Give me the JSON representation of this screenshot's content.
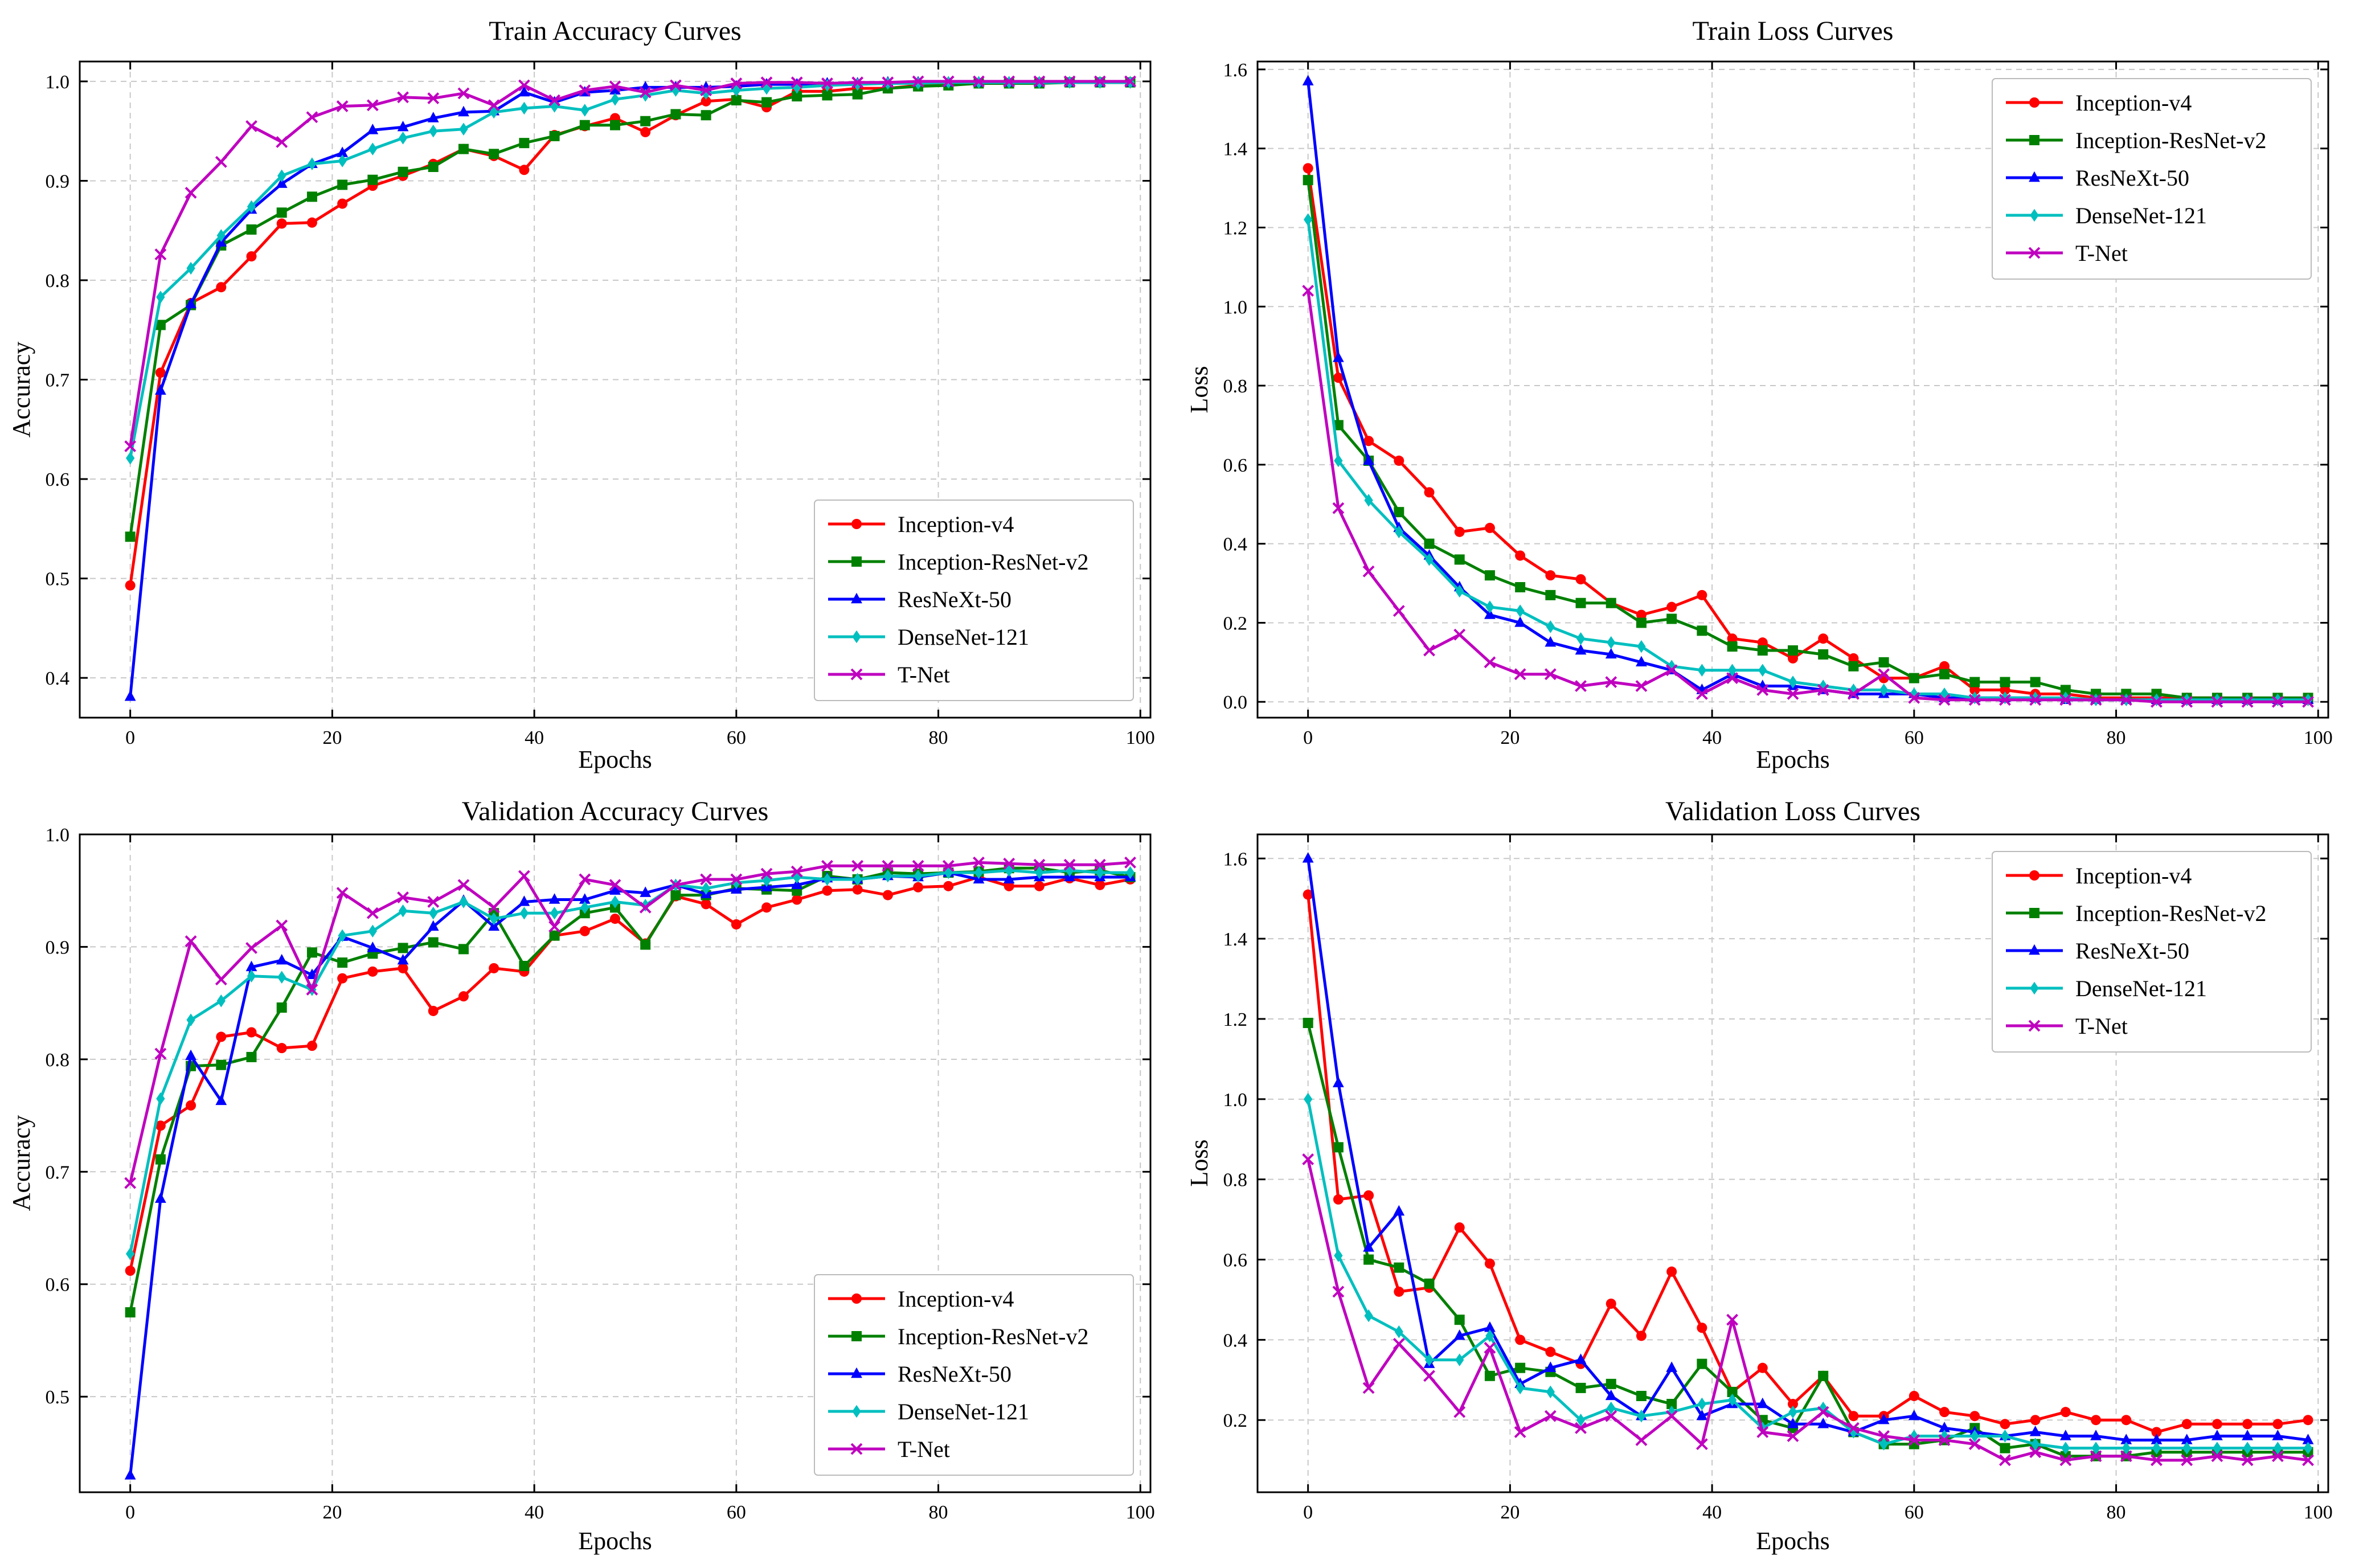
{
  "figure": {
    "series_styles": [
      {
        "name": "Inception-v4",
        "color": "#ff0000",
        "marker": "circle"
      },
      {
        "name": "Inception-ResNet-v2",
        "color": "#008000",
        "marker": "square"
      },
      {
        "name": "ResNeXt-50",
        "color": "#0000ff",
        "marker": "triangle"
      },
      {
        "name": "DenseNet-121",
        "color": "#00bfbf",
        "marker": "diamond"
      },
      {
        "name": "T-Net",
        "color": "#bf00bf",
        "marker": "x"
      }
    ]
  },
  "chart_data": [
    {
      "type": "line",
      "title": "Train Accuracy Curves",
      "xlabel": "Epochs",
      "ylabel": "Accuracy",
      "xlim": [
        -5,
        101
      ],
      "ylim": [
        0.36,
        1.02
      ],
      "xticks": [
        0,
        20,
        40,
        60,
        80,
        100
      ],
      "yticks": [
        0.4,
        0.5,
        0.6,
        0.7,
        0.8,
        0.9,
        1.0
      ],
      "xtick_labels": [
        "0",
        "20",
        "40",
        "60",
        "80",
        "100"
      ],
      "ytick_labels": [
        "0.4",
        "0.5",
        "0.6",
        "0.7",
        "0.8",
        "0.9",
        "1.0"
      ],
      "legend": "lower-right",
      "grid": true,
      "x": [
        0,
        3,
        6,
        9,
        12,
        15,
        18,
        21,
        24,
        27,
        30,
        33,
        36,
        39,
        42,
        45,
        48,
        51,
        54,
        57,
        60,
        63,
        66,
        69,
        72,
        75,
        78,
        81,
        84,
        87,
        90,
        93,
        96,
        99
      ],
      "series": [
        {
          "name": "Inception-v4",
          "values": [
            0.493,
            0.707,
            0.777,
            0.793,
            0.824,
            0.857,
            0.858,
            0.877,
            0.895,
            0.905,
            0.917,
            0.932,
            0.925,
            0.911,
            0.946,
            0.955,
            0.963,
            0.949,
            0.966,
            0.98,
            0.982,
            0.974,
            0.99,
            0.99,
            0.993,
            0.993,
            0.996,
            0.997,
            0.998,
            0.998,
            0.999,
            0.999,
            0.999,
            0.999
          ]
        },
        {
          "name": "Inception-ResNet-v2",
          "values": [
            0.542,
            0.755,
            0.775,
            0.835,
            0.851,
            0.868,
            0.884,
            0.896,
            0.901,
            0.909,
            0.914,
            0.932,
            0.927,
            0.938,
            0.945,
            0.956,
            0.956,
            0.96,
            0.967,
            0.966,
            0.981,
            0.979,
            0.985,
            0.986,
            0.987,
            0.993,
            0.995,
            0.996,
            0.998,
            0.998,
            0.998,
            0.999,
            0.999,
            0.999
          ]
        },
        {
          "name": "ResNeXt-50",
          "values": [
            0.381,
            0.689,
            0.776,
            0.838,
            0.871,
            0.897,
            0.917,
            0.928,
            0.951,
            0.954,
            0.963,
            0.969,
            0.97,
            0.989,
            0.979,
            0.989,
            0.991,
            0.994,
            0.994,
            0.994,
            0.995,
            0.997,
            0.997,
            0.998,
            0.998,
            0.999,
            0.999,
            0.999,
            0.999,
            0.999,
            0.999,
            0.999,
            0.999,
            0.999
          ]
        },
        {
          "name": "DenseNet-121",
          "values": [
            0.621,
            0.783,
            0.812,
            0.845,
            0.874,
            0.905,
            0.917,
            0.92,
            0.932,
            0.943,
            0.95,
            0.952,
            0.969,
            0.973,
            0.975,
            0.971,
            0.982,
            0.986,
            0.991,
            0.988,
            0.991,
            0.993,
            0.994,
            0.996,
            0.997,
            0.998,
            0.998,
            0.999,
            0.999,
            0.999,
            0.999,
            0.999,
            0.999,
            0.999
          ]
        },
        {
          "name": "T-Net",
          "values": [
            0.633,
            0.826,
            0.888,
            0.919,
            0.955,
            0.939,
            0.964,
            0.975,
            0.976,
            0.984,
            0.983,
            0.988,
            0.976,
            0.996,
            0.981,
            0.991,
            0.995,
            0.989,
            0.996,
            0.991,
            0.998,
            0.999,
            0.999,
            0.998,
            0.999,
            0.999,
            1.0,
            1.0,
            1.0,
            1.0,
            1.0,
            1.0,
            1.0,
            1.0
          ]
        }
      ]
    },
    {
      "type": "line",
      "title": "Train Loss Curves",
      "xlabel": "Epochs",
      "ylabel": "Loss",
      "xlim": [
        -5,
        101
      ],
      "ylim": [
        -0.04,
        1.62
      ],
      "xticks": [
        0,
        20,
        40,
        60,
        80,
        100
      ],
      "yticks": [
        0.0,
        0.2,
        0.4,
        0.6,
        0.8,
        1.0,
        1.2,
        1.4,
        1.6
      ],
      "xtick_labels": [
        "0",
        "20",
        "40",
        "60",
        "80",
        "100"
      ],
      "ytick_labels": [
        "0.0",
        "0.2",
        "0.4",
        "0.6",
        "0.8",
        "1.0",
        "1.2",
        "1.4",
        "1.6"
      ],
      "legend": "top-right",
      "grid": true,
      "x": [
        0,
        3,
        6,
        9,
        12,
        15,
        18,
        21,
        24,
        27,
        30,
        33,
        36,
        39,
        42,
        45,
        48,
        51,
        54,
        57,
        60,
        63,
        66,
        69,
        72,
        75,
        78,
        81,
        84,
        87,
        90,
        93,
        96,
        99
      ],
      "series": [
        {
          "name": "Inception-v4",
          "values": [
            1.35,
            0.82,
            0.66,
            0.61,
            0.53,
            0.43,
            0.44,
            0.37,
            0.32,
            0.31,
            0.25,
            0.22,
            0.24,
            0.27,
            0.16,
            0.15,
            0.11,
            0.16,
            0.11,
            0.06,
            0.06,
            0.09,
            0.03,
            0.03,
            0.02,
            0.02,
            0.01,
            0.01,
            0.01,
            0.01,
            0.01,
            0.005,
            0.005,
            0.005
          ]
        },
        {
          "name": "Inception-ResNet-v2",
          "values": [
            1.32,
            0.7,
            0.61,
            0.48,
            0.4,
            0.36,
            0.32,
            0.29,
            0.27,
            0.25,
            0.25,
            0.2,
            0.21,
            0.18,
            0.14,
            0.13,
            0.13,
            0.12,
            0.09,
            0.1,
            0.06,
            0.07,
            0.05,
            0.05,
            0.05,
            0.03,
            0.02,
            0.02,
            0.02,
            0.01,
            0.01,
            0.01,
            0.01,
            0.01
          ]
        },
        {
          "name": "ResNeXt-50",
          "values": [
            1.57,
            0.87,
            0.61,
            0.44,
            0.37,
            0.29,
            0.22,
            0.2,
            0.15,
            0.13,
            0.12,
            0.1,
            0.08,
            0.03,
            0.07,
            0.04,
            0.04,
            0.03,
            0.02,
            0.02,
            0.02,
            0.01,
            0.01,
            0.01,
            0.01,
            0.005,
            0.005,
            0.005,
            0.005,
            0.005,
            0.005,
            0.005,
            0.005,
            0.005
          ]
        },
        {
          "name": "DenseNet-121",
          "values": [
            1.22,
            0.61,
            0.51,
            0.43,
            0.36,
            0.28,
            0.24,
            0.23,
            0.19,
            0.16,
            0.15,
            0.14,
            0.09,
            0.08,
            0.08,
            0.08,
            0.05,
            0.04,
            0.03,
            0.03,
            0.02,
            0.02,
            0.01,
            0.01,
            0.01,
            0.01,
            0.005,
            0.005,
            0.005,
            0.005,
            0.005,
            0.005,
            0.005,
            0.005
          ]
        },
        {
          "name": "T-Net",
          "values": [
            1.04,
            0.49,
            0.33,
            0.23,
            0.13,
            0.17,
            0.1,
            0.07,
            0.07,
            0.04,
            0.05,
            0.04,
            0.08,
            0.02,
            0.06,
            0.03,
            0.02,
            0.03,
            0.02,
            0.07,
            0.01,
            0.005,
            0.005,
            0.005,
            0.005,
            0.005,
            0.005,
            0.005,
            0.0,
            0.0,
            0.0,
            0.0,
            0.0,
            0.0
          ]
        }
      ]
    },
    {
      "type": "line",
      "title": "Validation Accuracy Curves",
      "xlabel": "Epochs",
      "ylabel": "Accuracy",
      "xlim": [
        -5,
        101
      ],
      "ylim": [
        0.415,
        1.0
      ],
      "xticks": [
        0,
        20,
        40,
        60,
        80,
        100
      ],
      "yticks": [
        0.5,
        0.6,
        0.7,
        0.8,
        0.9,
        1.0
      ],
      "xtick_labels": [
        "0",
        "20",
        "40",
        "60",
        "80",
        "100"
      ],
      "ytick_labels": [
        "0.5",
        "0.6",
        "0.7",
        "0.8",
        "0.9",
        "1.0"
      ],
      "legend": "lower-right",
      "grid": true,
      "x": [
        0,
        3,
        6,
        9,
        12,
        15,
        18,
        21,
        24,
        27,
        30,
        33,
        36,
        39,
        42,
        45,
        48,
        51,
        54,
        57,
        60,
        63,
        66,
        69,
        72,
        75,
        78,
        81,
        84,
        87,
        90,
        93,
        96,
        99
      ],
      "series": [
        {
          "name": "Inception-v4",
          "values": [
            0.612,
            0.741,
            0.759,
            0.82,
            0.824,
            0.81,
            0.812,
            0.872,
            0.878,
            0.881,
            0.843,
            0.856,
            0.881,
            0.878,
            0.91,
            0.914,
            0.925,
            0.903,
            0.945,
            0.938,
            0.92,
            0.935,
            0.942,
            0.95,
            0.951,
            0.946,
            0.953,
            0.954,
            0.962,
            0.954,
            0.954,
            0.961,
            0.955,
            0.96
          ]
        },
        {
          "name": "Inception-ResNet-v2",
          "values": [
            0.575,
            0.711,
            0.794,
            0.795,
            0.802,
            0.846,
            0.895,
            0.886,
            0.894,
            0.899,
            0.904,
            0.898,
            0.93,
            0.883,
            0.91,
            0.93,
            0.935,
            0.902,
            0.946,
            0.946,
            0.952,
            0.951,
            0.95,
            0.963,
            0.96,
            0.966,
            0.965,
            0.966,
            0.967,
            0.97,
            0.97,
            0.966,
            0.968,
            0.962
          ]
        },
        {
          "name": "ResNeXt-50",
          "values": [
            0.43,
            0.676,
            0.803,
            0.763,
            0.882,
            0.888,
            0.875,
            0.909,
            0.899,
            0.888,
            0.918,
            0.941,
            0.918,
            0.94,
            0.942,
            0.942,
            0.95,
            0.948,
            0.955,
            0.947,
            0.951,
            0.953,
            0.955,
            0.961,
            0.96,
            0.963,
            0.962,
            0.966,
            0.96,
            0.96,
            0.962,
            0.962,
            0.962,
            0.962
          ]
        },
        {
          "name": "DenseNet-121",
          "values": [
            0.627,
            0.765,
            0.835,
            0.852,
            0.874,
            0.873,
            0.862,
            0.91,
            0.914,
            0.932,
            0.93,
            0.94,
            0.925,
            0.93,
            0.93,
            0.935,
            0.94,
            0.937,
            0.955,
            0.952,
            0.957,
            0.959,
            0.962,
            0.96,
            0.96,
            0.963,
            0.963,
            0.966,
            0.966,
            0.968,
            0.966,
            0.968,
            0.966,
            0.966
          ]
        },
        {
          "name": "T-Net",
          "values": [
            0.69,
            0.805,
            0.905,
            0.871,
            0.899,
            0.919,
            0.862,
            0.948,
            0.93,
            0.944,
            0.94,
            0.955,
            0.935,
            0.963,
            0.918,
            0.96,
            0.955,
            0.935,
            0.955,
            0.96,
            0.96,
            0.965,
            0.967,
            0.972,
            0.972,
            0.972,
            0.972,
            0.972,
            0.975,
            0.974,
            0.973,
            0.973,
            0.973,
            0.975
          ]
        }
      ]
    },
    {
      "type": "line",
      "title": "Validation Loss Curves",
      "xlabel": "Epochs",
      "ylabel": "Loss",
      "xlim": [
        -5,
        101
      ],
      "ylim": [
        0.02,
        1.66
      ],
      "xticks": [
        0,
        20,
        40,
        60,
        80,
        100
      ],
      "yticks": [
        0.2,
        0.4,
        0.6,
        0.8,
        1.0,
        1.2,
        1.4,
        1.6
      ],
      "xtick_labels": [
        "0",
        "20",
        "40",
        "60",
        "80",
        "100"
      ],
      "ytick_labels": [
        "0.2",
        "0.4",
        "0.6",
        "0.8",
        "1.0",
        "1.2",
        "1.4",
        "1.6"
      ],
      "legend": "top-right",
      "grid": true,
      "x": [
        0,
        3,
        6,
        9,
        12,
        15,
        18,
        21,
        24,
        27,
        30,
        33,
        36,
        39,
        42,
        45,
        48,
        51,
        54,
        57,
        60,
        63,
        66,
        69,
        72,
        75,
        78,
        81,
        84,
        87,
        90,
        93,
        96,
        99
      ],
      "series": [
        {
          "name": "Inception-v4",
          "values": [
            1.51,
            0.75,
            0.76,
            0.52,
            0.53,
            0.68,
            0.59,
            0.4,
            0.37,
            0.34,
            0.49,
            0.41,
            0.57,
            0.43,
            0.27,
            0.33,
            0.24,
            0.31,
            0.21,
            0.21,
            0.26,
            0.22,
            0.21,
            0.19,
            0.2,
            0.22,
            0.2,
            0.2,
            0.17,
            0.19,
            0.19,
            0.19,
            0.19,
            0.2
          ]
        },
        {
          "name": "Inception-ResNet-v2",
          "values": [
            1.19,
            0.88,
            0.6,
            0.58,
            0.54,
            0.45,
            0.31,
            0.33,
            0.32,
            0.28,
            0.29,
            0.26,
            0.24,
            0.34,
            0.27,
            0.2,
            0.18,
            0.31,
            0.17,
            0.14,
            0.14,
            0.15,
            0.18,
            0.13,
            0.14,
            0.11,
            0.11,
            0.11,
            0.12,
            0.12,
            0.12,
            0.12,
            0.12,
            0.12
          ]
        },
        {
          "name": "ResNeXt-50",
          "values": [
            1.6,
            1.04,
            0.63,
            0.72,
            0.34,
            0.41,
            0.43,
            0.29,
            0.33,
            0.35,
            0.26,
            0.21,
            0.33,
            0.21,
            0.24,
            0.24,
            0.19,
            0.19,
            0.17,
            0.2,
            0.21,
            0.18,
            0.17,
            0.16,
            0.17,
            0.16,
            0.16,
            0.15,
            0.15,
            0.15,
            0.16,
            0.16,
            0.16,
            0.15
          ]
        },
        {
          "name": "DenseNet-121",
          "values": [
            1.0,
            0.61,
            0.46,
            0.42,
            0.35,
            0.35,
            0.41,
            0.28,
            0.27,
            0.2,
            0.23,
            0.21,
            0.22,
            0.24,
            0.25,
            0.18,
            0.22,
            0.23,
            0.17,
            0.14,
            0.16,
            0.16,
            0.16,
            0.16,
            0.14,
            0.13,
            0.13,
            0.13,
            0.13,
            0.13,
            0.13,
            0.13,
            0.13,
            0.13
          ]
        },
        {
          "name": "T-Net",
          "values": [
            0.85,
            0.52,
            0.28,
            0.39,
            0.31,
            0.22,
            0.38,
            0.17,
            0.21,
            0.18,
            0.21,
            0.15,
            0.21,
            0.14,
            0.45,
            0.17,
            0.16,
            0.22,
            0.18,
            0.16,
            0.15,
            0.15,
            0.14,
            0.1,
            0.12,
            0.1,
            0.11,
            0.11,
            0.1,
            0.1,
            0.11,
            0.1,
            0.11,
            0.1
          ]
        }
      ]
    }
  ]
}
